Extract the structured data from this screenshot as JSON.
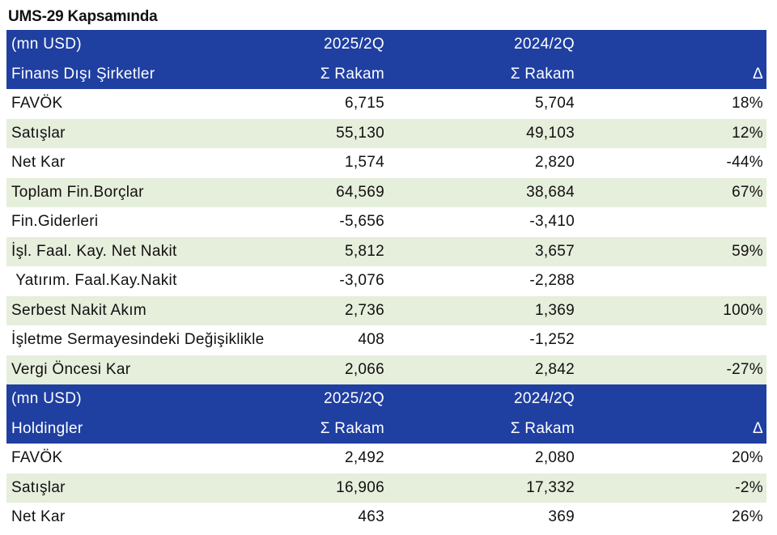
{
  "title": "UMS-29 Kapsamında",
  "section1": {
    "header1": [
      "(mn USD)",
      "2025/2Q",
      "2024/2Q",
      ""
    ],
    "header2": [
      "Finans Dışı Şirketler",
      "Σ Rakam",
      "Σ Rakam",
      "Δ"
    ],
    "rows": [
      [
        "FAVÖK",
        "6,715",
        "5,704",
        "18%"
      ],
      [
        "Satışlar",
        "55,130",
        "49,103",
        "12%"
      ],
      [
        "Net Kar",
        "1,574",
        "2,820",
        "-44%"
      ],
      [
        "Toplam Fin.Borçlar",
        "64,569",
        "38,684",
        "67%"
      ],
      [
        "Fin.Giderleri",
        "-5,656",
        "-3,410",
        ""
      ],
      [
        "İşl. Faal. Kay. Net Nakit",
        "5,812",
        "3,657",
        "59%"
      ],
      [
        " Yatırım. Faal.Kay.Nakit",
        "-3,076",
        "-2,288",
        ""
      ],
      [
        "Serbest Nakit Akım",
        "2,736",
        "1,369",
        "100%"
      ],
      [
        "İşletme Sermayesindeki Değişiklikle",
        "408",
        "-1,252",
        ""
      ],
      [
        "Vergi Öncesi Kar",
        "2,066",
        "2,842",
        "-27%"
      ]
    ]
  },
  "section2": {
    "header1": [
      "(mn USD)",
      "2025/2Q",
      "2024/2Q",
      ""
    ],
    "header2": [
      "Holdingler",
      "Σ Rakam",
      "Σ Rakam",
      "Δ"
    ],
    "rows": [
      [
        "FAVÖK",
        "2,492",
        "2,080",
        "20%"
      ],
      [
        "Satışlar",
        "16,906",
        "17,332",
        "-2%"
      ],
      [
        "Net Kar",
        "463",
        "369",
        "26%"
      ]
    ]
  }
}
